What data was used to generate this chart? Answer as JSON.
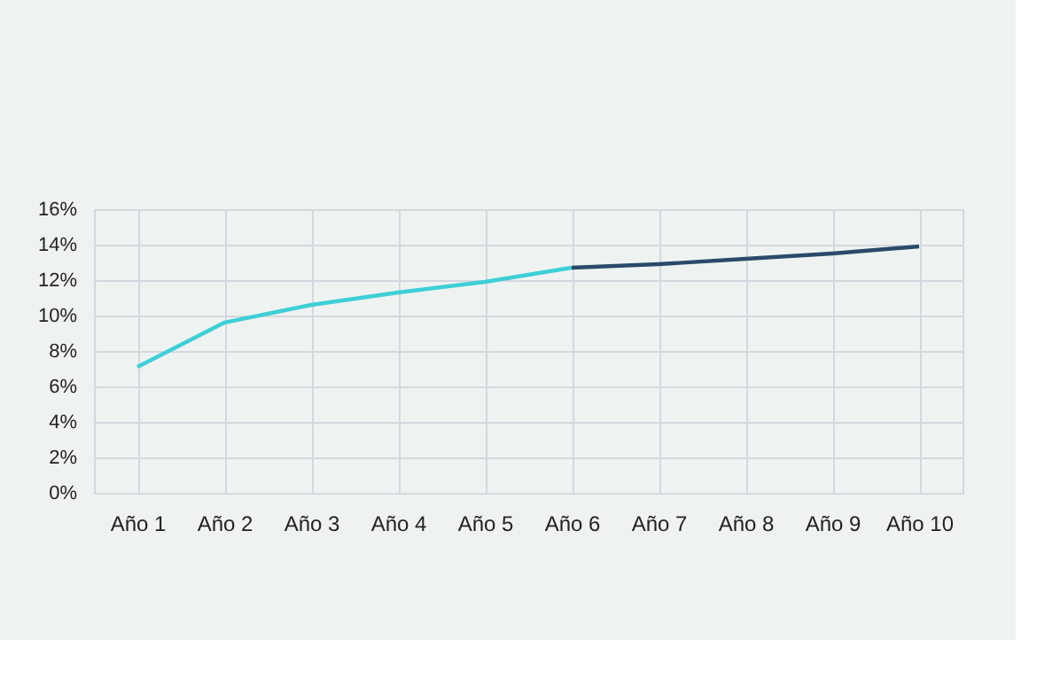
{
  "chart_data": {
    "type": "line",
    "categories": [
      "Año 1",
      "Año 2",
      "Año 3",
      "Año 4",
      "Año 5",
      "Año 6",
      "Año 7",
      "Año 8",
      "Año 9",
      "Año 10"
    ],
    "series": [
      {
        "color": "#3ecfd6",
        "values": [
          7.1,
          9.6,
          10.6,
          11.3,
          11.9,
          12.7,
          null,
          null,
          null,
          null
        ]
      },
      {
        "color": "#2b4a6b",
        "values": [
          null,
          null,
          null,
          null,
          null,
          12.7,
          12.9,
          13.2,
          13.5,
          13.9
        ]
      }
    ],
    "ylim": [
      0,
      16
    ],
    "yticks": [
      {
        "value": 0,
        "label": "0%"
      },
      {
        "value": 2,
        "label": "2%"
      },
      {
        "value": 4,
        "label": "4%"
      },
      {
        "value": 6,
        "label": "6%"
      },
      {
        "value": 8,
        "label": "8%"
      },
      {
        "value": 10,
        "label": "10%"
      },
      {
        "value": 12,
        "label": "12%"
      },
      {
        "value": 14,
        "label": "14%"
      },
      {
        "value": 16,
        "label": "16%"
      }
    ],
    "grid": true,
    "marker": "none",
    "line_style": "solid"
  }
}
